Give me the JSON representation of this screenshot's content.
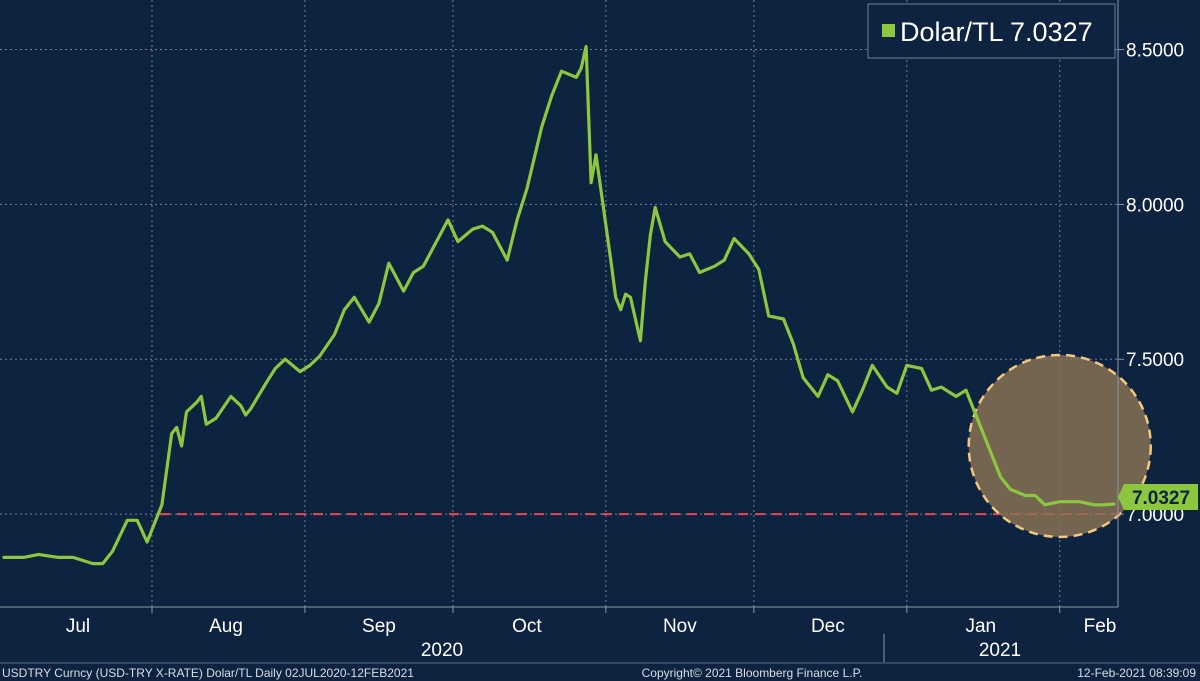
{
  "colors": {
    "background": "#0d2340",
    "line": "#8dc63f",
    "grid": "#6f8197",
    "reference_line": "#e8455a",
    "highlight_fill": "#8a7454",
    "highlight_stroke": "#f3c77f",
    "last_badge": "#8dc63f"
  },
  "legend": {
    "label": "Dolar/TL 7.0327",
    "marker": "square-marker"
  },
  "last_value_label": "7.0327",
  "footer": {
    "left": "USDTRY Curncy (USD-TRY X-RATE) Dolar/TL  Daily 02JUL2020-12FEB2021",
    "center": "Copyright© 2021 Bloomberg Finance L.P.",
    "right": "12-Feb-2021 08:39:09"
  },
  "chart_data": {
    "type": "line",
    "title": "",
    "xlabel": "",
    "ylabel": "",
    "x_tick_labels": [
      "Jul",
      "Aug",
      "Sep",
      "Oct",
      "Nov",
      "Dec",
      "Jan",
      "Feb"
    ],
    "x_year_labels": [
      "2020",
      "2021"
    ],
    "y_tick_labels": [
      "7.0000",
      "7.5000",
      "8.0000",
      "8.5000"
    ],
    "ylim": [
      6.7,
      8.66
    ],
    "xlim": [
      "2020-07-02",
      "2021-02-12"
    ],
    "grid": true,
    "legend_position": "top-right",
    "reference_line": {
      "y": 7.0,
      "style": "dashed"
    },
    "highlight_region": {
      "shape": "circle",
      "x": "2021-02-01",
      "y": 7.22
    },
    "series": [
      {
        "name": "Dolar/TL",
        "x": [
          "2020-07-02",
          "2020-07-06",
          "2020-07-09",
          "2020-07-13",
          "2020-07-16",
          "2020-07-20",
          "2020-07-22",
          "2020-07-24",
          "2020-07-27",
          "2020-07-29",
          "2020-07-31",
          "2020-08-03",
          "2020-08-05",
          "2020-08-06",
          "2020-08-07",
          "2020-08-08",
          "2020-08-10",
          "2020-08-11",
          "2020-08-12",
          "2020-08-14",
          "2020-08-17",
          "2020-08-19",
          "2020-08-20",
          "2020-08-21",
          "2020-08-24",
          "2020-08-26",
          "2020-08-28",
          "2020-08-31",
          "2020-09-02",
          "2020-09-04",
          "2020-09-07",
          "2020-09-09",
          "2020-09-11",
          "2020-09-14",
          "2020-09-16",
          "2020-09-18",
          "2020-09-21",
          "2020-09-23",
          "2020-09-25",
          "2020-09-28",
          "2020-09-30",
          "2020-10-02",
          "2020-10-05",
          "2020-10-07",
          "2020-10-09",
          "2020-10-12",
          "2020-10-14",
          "2020-10-16",
          "2020-10-19",
          "2020-10-21",
          "2020-10-23",
          "2020-10-26",
          "2020-10-27",
          "2020-10-28",
          "2020-10-29",
          "2020-10-30",
          "2020-11-02",
          "2020-11-03",
          "2020-11-04",
          "2020-11-05",
          "2020-11-06",
          "2020-11-08",
          "2020-11-09",
          "2020-11-10",
          "2020-11-11",
          "2020-11-13",
          "2020-11-16",
          "2020-11-18",
          "2020-11-20",
          "2020-11-23",
          "2020-11-25",
          "2020-11-27",
          "2020-11-30",
          "2020-12-02",
          "2020-12-04",
          "2020-12-07",
          "2020-12-09",
          "2020-12-11",
          "2020-12-14",
          "2020-12-16",
          "2020-12-18",
          "2020-12-21",
          "2020-12-23",
          "2020-12-25",
          "2020-12-28",
          "2020-12-30",
          "2021-01-01",
          "2021-01-04",
          "2021-01-06",
          "2021-01-08",
          "2021-01-11",
          "2021-01-13",
          "2021-01-15",
          "2021-01-18",
          "2021-01-20",
          "2021-01-22",
          "2021-01-25",
          "2021-01-27",
          "2021-01-29",
          "2021-02-01",
          "2021-02-03",
          "2021-02-05",
          "2021-02-08",
          "2021-02-10",
          "2021-02-12"
        ],
        "values": [
          6.86,
          6.86,
          6.87,
          6.86,
          6.86,
          6.84,
          6.84,
          6.88,
          6.98,
          6.98,
          6.91,
          7.03,
          7.26,
          7.28,
          7.22,
          7.33,
          7.36,
          7.38,
          7.29,
          7.31,
          7.38,
          7.35,
          7.32,
          7.34,
          7.42,
          7.47,
          7.5,
          7.46,
          7.48,
          7.51,
          7.58,
          7.66,
          7.7,
          7.62,
          7.68,
          7.81,
          7.72,
          7.78,
          7.8,
          7.89,
          7.95,
          7.88,
          7.92,
          7.93,
          7.91,
          7.82,
          7.95,
          8.05,
          8.25,
          8.35,
          8.43,
          8.41,
          8.44,
          8.51,
          8.07,
          8.16,
          7.82,
          7.7,
          7.66,
          7.71,
          7.7,
          7.56,
          7.75,
          7.9,
          7.99,
          7.88,
          7.83,
          7.84,
          7.78,
          7.8,
          7.82,
          7.89,
          7.84,
          7.79,
          7.64,
          7.63,
          7.55,
          7.44,
          7.38,
          7.45,
          7.43,
          7.33,
          7.4,
          7.48,
          7.41,
          7.39,
          7.48,
          7.47,
          7.4,
          7.41,
          7.38,
          7.4,
          7.32,
          7.2,
          7.12,
          7.08,
          7.06,
          7.06,
          7.03,
          7.04,
          7.04,
          7.04,
          7.03,
          7.03,
          7.0327
        ]
      }
    ]
  }
}
